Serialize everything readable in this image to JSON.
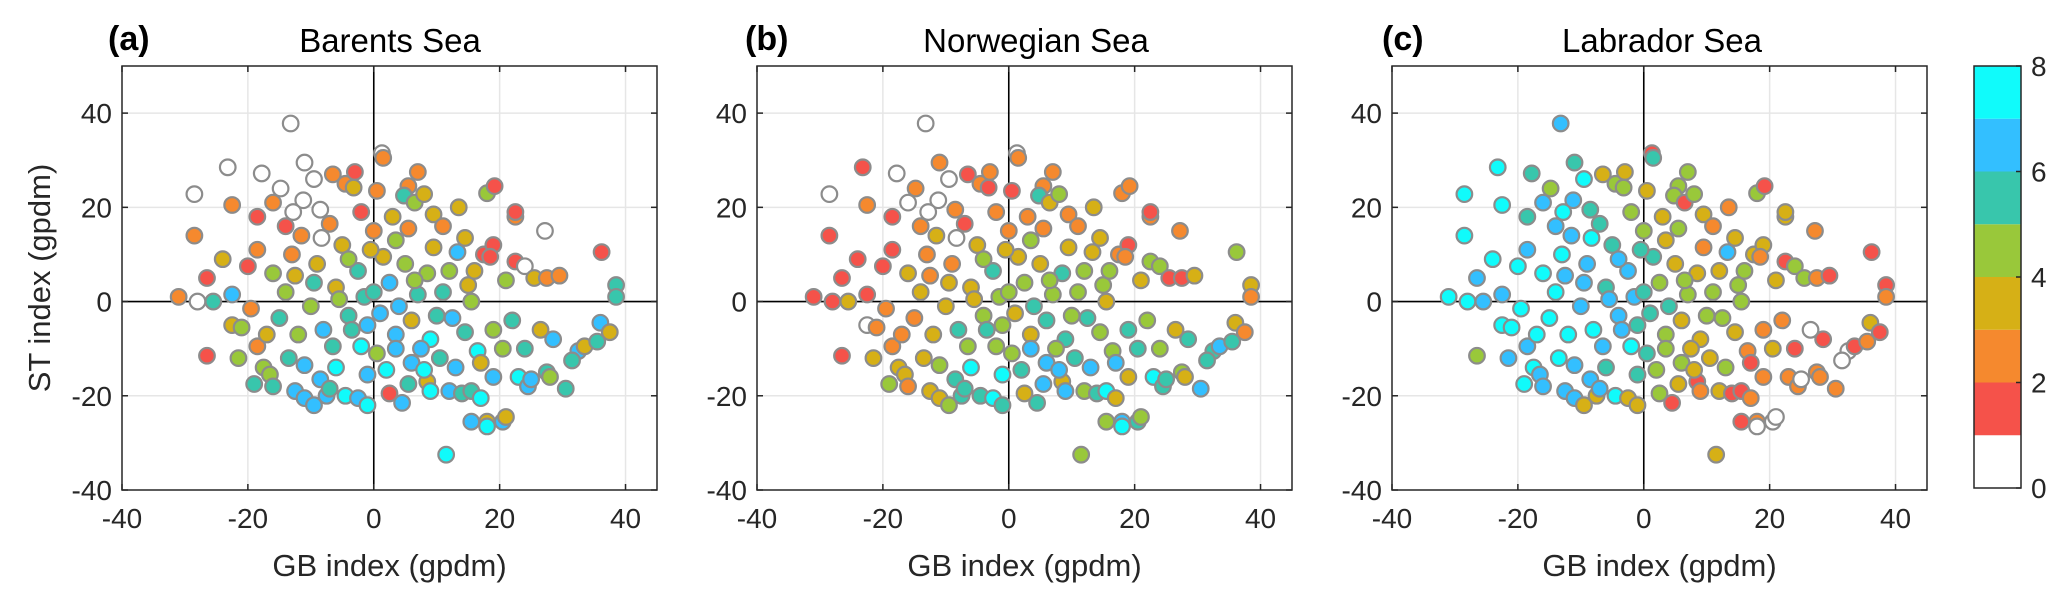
{
  "figure": {
    "colorbar": {
      "ticks": [
        "0",
        "2",
        "4",
        "6",
        "8"
      ],
      "range": [
        0,
        8
      ],
      "bins": [
        {
          "from": 0,
          "to": 1,
          "color": "#ffffff"
        },
        {
          "from": 1,
          "to": 2,
          "color": "#f5524a"
        },
        {
          "from": 2,
          "to": 3,
          "color": "#f5892e"
        },
        {
          "from": 3,
          "to": 4,
          "color": "#d6b016"
        },
        {
          "from": 4,
          "to": 5,
          "color": "#99c83a"
        },
        {
          "from": 5,
          "to": 6,
          "color": "#38c6ac"
        },
        {
          "from": 6,
          "to": 7,
          "color": "#33bfff"
        },
        {
          "from": 7,
          "to": 8,
          "color": "#10fbfb"
        }
      ]
    },
    "marker_edge_color": "#8c8c8c"
  },
  "chart_data": [
    {
      "type": "scatter",
      "panel_label": "(a)",
      "title": "Barents Sea",
      "xlabel": "GB index (gpdm)",
      "ylabel": "ST index (gpdm)",
      "xlim": [
        -40,
        45
      ],
      "ylim": [
        -40,
        50
      ],
      "xticks": [
        "-40",
        "-20",
        "0",
        "20",
        "40"
      ],
      "yticks": [
        "-40",
        "-20",
        "0",
        "20",
        "40"
      ],
      "grid": true,
      "color_value_index": 2
    },
    {
      "type": "scatter",
      "panel_label": "(b)",
      "title": "Norwegian Sea",
      "xlabel": "GB index (gpdm)",
      "ylabel": "",
      "xlim": [
        -40,
        45
      ],
      "ylim": [
        -40,
        50
      ],
      "xticks": [
        "-40",
        "-20",
        "0",
        "20",
        "40"
      ],
      "yticks": [
        "-40",
        "-20",
        "0",
        "20",
        "40"
      ],
      "grid": true,
      "color_value_index": 3
    },
    {
      "type": "scatter",
      "panel_label": "(c)",
      "title": "Labrador Sea",
      "xlabel": "GB index (gpdm)",
      "ylabel": "",
      "xlim": [
        -40,
        45
      ],
      "ylim": [
        -40,
        50
      ],
      "xticks": [
        "-40",
        "-20",
        "0",
        "20",
        "40"
      ],
      "yticks": [
        "-40",
        "-20",
        "0",
        "20",
        "40"
      ],
      "grid": true,
      "color_value_index": 4
    }
  ],
  "points_columns": [
    "GB",
    "ST",
    "barents",
    "norwegian",
    "labrador"
  ],
  "points": [
    [
      -13.2,
      37.8,
      0.5,
      0.5,
      6.5
    ],
    [
      1.3,
      31.5,
      0.5,
      0.5,
      1.5
    ],
    [
      1.5,
      30.5,
      2.5,
      2.5,
      5.5
    ],
    [
      -28.5,
      22.8,
      0.5,
      0.5,
      7.5
    ],
    [
      -23.2,
      28.5,
      0.5,
      1.5,
      7.5
    ],
    [
      -17.8,
      27.2,
      0.5,
      0.5,
      5.5
    ],
    [
      -11.0,
      29.5,
      0.5,
      2.5,
      5.5
    ],
    [
      -14.8,
      24.0,
      0.5,
      2.5,
      4.5
    ],
    [
      -9.5,
      26.0,
      0.5,
      0.5,
      7.5
    ],
    [
      -6.5,
      27.0,
      2.5,
      1.5,
      3.5
    ],
    [
      -4.5,
      25.0,
      2.5,
      2.5,
      4.5
    ],
    [
      -3.0,
      27.5,
      1.5,
      2.5,
      3.5
    ],
    [
      -3.2,
      24.2,
      3.5,
      1.5,
      4.5
    ],
    [
      -22.5,
      20.5,
      2.5,
      2.5,
      7.5
    ],
    [
      -28.5,
      14.0,
      2.5,
      1.5,
      7.5
    ],
    [
      -18.5,
      18.0,
      1.5,
      1.5,
      5.5
    ],
    [
      -11.2,
      21.5,
      0.5,
      0.5,
      6.5
    ],
    [
      -12.8,
      19.0,
      0.5,
      0.5,
      7.5
    ],
    [
      -8.5,
      19.5,
      0.5,
      2.5,
      5.5
    ],
    [
      -8.3,
      13.5,
      0.5,
      0.5,
      7.5
    ],
    [
      -14.0,
      16.0,
      1.5,
      2.5,
      6.5
    ],
    [
      5.5,
      24.5,
      2.5,
      2.5,
      4.5
    ],
    [
      7.0,
      27.5,
      2.5,
      2.5,
      4.5
    ],
    [
      4.8,
      22.5,
      5.5,
      5.5,
      4.5
    ],
    [
      6.5,
      21.0,
      4.5,
      3.5,
      1.5
    ],
    [
      8.0,
      22.8,
      3.5,
      4.5,
      4.5
    ],
    [
      9.5,
      18.5,
      3.5,
      2.5,
      3.5
    ],
    [
      13.5,
      20.0,
      3.5,
      3.5,
      2.5
    ],
    [
      18.0,
      23.0,
      4.5,
      2.5,
      4.5
    ],
    [
      19.2,
      24.5,
      1.5,
      2.5,
      1.5
    ],
    [
      13.3,
      10.5,
      6.5,
      3.5,
      6.5
    ],
    [
      22.5,
      18.0,
      2.5,
      2.5,
      3.5
    ],
    [
      22.5,
      19.0,
      1.5,
      1.5,
      3.5
    ],
    [
      27.2,
      15.0,
      0.5,
      2.5,
      2.5
    ],
    [
      36.2,
      10.5,
      1.5,
      4.5,
      1.5
    ],
    [
      38.5,
      3.5,
      5.5,
      3.5,
      1.5
    ],
    [
      38.5,
      1.0,
      5.5,
      2.5,
      2.5
    ],
    [
      17.5,
      10.0,
      1.5,
      2.5,
      3.5
    ],
    [
      19.0,
      12.0,
      1.5,
      1.5,
      3.5
    ],
    [
      18.5,
      9.5,
      1.5,
      2.5,
      2.5
    ],
    [
      22.5,
      8.5,
      1.5,
      4.5,
      1.5
    ],
    [
      24.0,
      7.5,
      0.5,
      4.5,
      4.5
    ],
    [
      25.5,
      5.0,
      3.5,
      1.5,
      4.5
    ],
    [
      27.5,
      5.0,
      2.5,
      1.5,
      2.5
    ],
    [
      29.5,
      5.5,
      2.5,
      3.5,
      1.5
    ],
    [
      21.0,
      4.5,
      4.5,
      3.5,
      3.5
    ],
    [
      15.0,
      3.5,
      3.5,
      4.5,
      4.5
    ],
    [
      -31.0,
      1.0,
      2.5,
      1.5,
      7.5
    ],
    [
      -28.0,
      0.0,
      0.5,
      1.5,
      7.5
    ],
    [
      -25.5,
      0.0,
      5.5,
      3.5,
      6.5
    ],
    [
      -26.5,
      5.0,
      1.5,
      1.5,
      6.5
    ],
    [
      -22.5,
      1.5,
      6.5,
      1.5,
      6.5
    ],
    [
      -26.5,
      -11.5,
      1.5,
      1.5,
      4.5
    ],
    [
      -22.5,
      -5.0,
      3.5,
      0.5,
      7.5
    ],
    [
      -21.0,
      -5.5,
      4.5,
      2.5,
      7.5
    ],
    [
      -18.5,
      -9.5,
      2.5,
      2.5,
      6.5
    ],
    [
      -17.5,
      -14.0,
      4.5,
      3.5,
      7.5
    ],
    [
      -16.5,
      -15.5,
      4.5,
      3.5,
      6.5
    ],
    [
      -16.0,
      -18.0,
      5.5,
      2.5,
      6.5
    ],
    [
      -12.5,
      -19.0,
      6.5,
      3.5,
      6.5
    ],
    [
      -11.0,
      -20.5,
      6.5,
      3.5,
      6.5
    ],
    [
      -7.5,
      -20.0,
      6.5,
      5.5,
      3.5
    ],
    [
      -4.5,
      -20.0,
      7.5,
      5.5,
      7.5
    ],
    [
      -2.5,
      -20.5,
      6.5,
      7.5,
      3.5
    ],
    [
      -1.0,
      -22.0,
      7.5,
      5.5,
      3.5
    ],
    [
      2.5,
      -19.5,
      1.5,
      3.5,
      4.5
    ],
    [
      4.5,
      -21.5,
      6.5,
      5.5,
      1.5
    ],
    [
      8.5,
      -17.0,
      3.5,
      3.5,
      1.5
    ],
    [
      9.0,
      -19.0,
      7.5,
      6.5,
      2.5
    ],
    [
      12.0,
      -19.0,
      6.5,
      4.5,
      3.5
    ],
    [
      14.0,
      -19.5,
      5.5,
      5.5,
      1.5
    ],
    [
      15.5,
      -19.0,
      5.5,
      7.5,
      1.5
    ],
    [
      17.0,
      -20.5,
      7.5,
      3.5,
      2.5
    ],
    [
      15.5,
      -25.5,
      6.5,
      4.5,
      1.5
    ],
    [
      18.0,
      -25.5,
      3.5,
      6.5,
      2.5
    ],
    [
      18.0,
      -26.5,
      7.5,
      7.5,
      0.5
    ],
    [
      20.5,
      -25.5,
      6.5,
      5.5,
      0.5
    ],
    [
      21.0,
      -24.5,
      3.5,
      4.5,
      0.5
    ],
    [
      11.5,
      -32.5,
      7.5,
      4.5,
      3.5
    ],
    [
      23.0,
      -16.0,
      7.5,
      7.5,
      2.5
    ],
    [
      24.5,
      -18.0,
      6.5,
      5.5,
      2.5
    ],
    [
      25.0,
      -16.5,
      6.5,
      5.5,
      0.5
    ],
    [
      27.5,
      -15.0,
      5.5,
      4.5,
      2.5
    ],
    [
      28.0,
      -16.0,
      4.5,
      3.5,
      2.5
    ],
    [
      30.5,
      -18.5,
      5.5,
      6.5,
      2.5
    ],
    [
      32.5,
      -10.5,
      6.5,
      5.5,
      0.5
    ],
    [
      33.5,
      -9.5,
      3.5,
      6.5,
      1.5
    ],
    [
      35.5,
      -8.5,
      5.5,
      5.5,
      2.5
    ],
    [
      36.0,
      -4.5,
      6.5,
      3.5,
      3.5
    ],
    [
      37.5,
      -6.5,
      3.5,
      2.5,
      1.5
    ],
    [
      31.5,
      -12.5,
      5.5,
      5.5,
      0.5
    ],
    [
      26.5,
      -6.0,
      3.5,
      3.5,
      0.5
    ],
    [
      22.0,
      -4.0,
      5.5,
      4.5,
      2.5
    ],
    [
      20.5,
      -10.0,
      4.5,
      5.5,
      3.5
    ],
    [
      16.5,
      -10.5,
      7.5,
      4.5,
      2.5
    ],
    [
      17.0,
      -13.0,
      3.5,
      6.5,
      1.5
    ],
    [
      13.0,
      -14.0,
      6.5,
      6.5,
      4.5
    ],
    [
      10.5,
      -12.0,
      5.5,
      5.5,
      3.5
    ],
    [
      -9.5,
      -22.0,
      6.5,
      4.5,
      3.5
    ],
    [
      -6.0,
      -14.0,
      7.5,
      7.5,
      5.5
    ],
    [
      -13.5,
      -12.0,
      5.5,
      3.5,
      7.5
    ],
    [
      -2.0,
      -9.5,
      7.5,
      4.5,
      7.5
    ],
    [
      0.5,
      -11.0,
      4.5,
      4.5,
      5.5
    ],
    [
      3.5,
      -7.0,
      6.5,
      3.5,
      4.5
    ],
    [
      6.0,
      -4.0,
      3.5,
      5.5,
      3.5
    ],
    [
      -8.0,
      -6.0,
      6.5,
      5.5,
      7.5
    ],
    [
      -4.0,
      -3.0,
      5.5,
      4.5,
      6.5
    ],
    [
      1.0,
      -2.5,
      6.5,
      3.5,
      5.5
    ],
    [
      -10.0,
      -1.0,
      4.5,
      3.5,
      6.5
    ],
    [
      -15.0,
      -3.5,
      5.5,
      2.5,
      7.5
    ],
    [
      -6.0,
      3.0,
      3.5,
      3.5,
      5.5
    ],
    [
      -2.5,
      6.5,
      5.5,
      5.5,
      6.5
    ],
    [
      2.5,
      4.0,
      6.5,
      4.5,
      4.5
    ],
    [
      5.0,
      8.0,
      4.5,
      3.5,
      3.5
    ],
    [
      -9.0,
      8.0,
      3.5,
      2.5,
      6.5
    ],
    [
      -13.0,
      10.0,
      2.5,
      2.5,
      7.5
    ],
    [
      -16.0,
      6.0,
      4.5,
      3.5,
      7.5
    ],
    [
      -18.5,
      11.0,
      2.5,
      1.5,
      6.5
    ],
    [
      -5.0,
      12.0,
      3.5,
      3.5,
      5.5
    ],
    [
      0.0,
      15.0,
      2.5,
      2.5,
      4.5
    ],
    [
      3.5,
      13.0,
      4.5,
      4.5,
      3.5
    ],
    [
      8.5,
      6.0,
      4.5,
      5.5,
      3.5
    ],
    [
      11.0,
      2.0,
      5.5,
      4.5,
      4.5
    ],
    [
      12.5,
      -3.5,
      6.5,
      5.5,
      4.5
    ],
    [
      9.0,
      -8.0,
      7.5,
      5.5,
      3.5
    ],
    [
      6.0,
      -13.0,
      6.5,
      6.5,
      4.5
    ],
    [
      -1.0,
      -15.5,
      6.5,
      7.5,
      5.5
    ],
    [
      -8.5,
      -16.5,
      6.5,
      5.5,
      6.5
    ],
    [
      -12.0,
      -7.0,
      4.5,
      3.5,
      7.5
    ],
    [
      -19.5,
      -1.5,
      2.5,
      2.5,
      7.5
    ],
    [
      -7.0,
      16.5,
      2.5,
      1.5,
      5.5
    ],
    [
      -2.0,
      19.0,
      1.5,
      2.5,
      4.5
    ],
    [
      3.0,
      18.0,
      3.5,
      2.5,
      3.5
    ],
    [
      -11.5,
      14.0,
      2.5,
      3.5,
      6.5
    ],
    [
      -4.0,
      9.0,
      4.5,
      4.5,
      6.5
    ],
    [
      1.5,
      9.5,
      3.5,
      3.5,
      5.5
    ],
    [
      7.0,
      1.5,
      5.5,
      4.5,
      4.5
    ],
    [
      -1.5,
      1.0,
      5.5,
      4.5,
      6.5
    ],
    [
      4.0,
      -1.0,
      6.5,
      5.5,
      5.5
    ],
    [
      -6.5,
      -9.5,
      5.5,
      4.5,
      6.5
    ],
    [
      2.0,
      -14.5,
      7.5,
      5.5,
      4.5
    ],
    [
      7.5,
      -10.0,
      6.5,
      4.5,
      3.5
    ],
    [
      14.5,
      -6.5,
      5.5,
      4.5,
      3.5
    ],
    [
      15.5,
      0.0,
      4.5,
      3.5,
      4.5
    ],
    [
      12.0,
      6.5,
      4.5,
      4.5,
      3.5
    ],
    [
      9.5,
      11.5,
      3.5,
      3.5,
      2.5
    ],
    [
      -14.0,
      2.0,
      4.5,
      3.5,
      7.5
    ],
    [
      -9.5,
      4.0,
      5.5,
      3.5,
      6.5
    ],
    [
      -11.0,
      -13.5,
      6.5,
      4.5,
      6.5
    ],
    [
      -3.5,
      -6.0,
      5.5,
      5.5,
      6.5
    ],
    [
      5.5,
      -17.5,
      5.5,
      6.5,
      3.5
    ],
    [
      10.0,
      -3.0,
      5.5,
      4.5,
      4.5
    ],
    [
      -17.0,
      -7.0,
      3.5,
      2.5,
      7.5
    ],
    [
      -20.0,
      7.5,
      1.5,
      1.5,
      7.5
    ],
    [
      -21.5,
      -12.0,
      4.5,
      3.5,
      6.5
    ],
    [
      0.5,
      23.5,
      2.5,
      1.5,
      3.5
    ],
    [
      -0.5,
      11.0,
      3.5,
      3.5,
      5.5
    ],
    [
      5.5,
      15.5,
      2.5,
      2.5,
      4.5
    ],
    [
      14.5,
      13.5,
      3.5,
      3.5,
      3.5
    ],
    [
      11.0,
      16.0,
      2.5,
      2.5,
      2.5
    ],
    [
      -24.0,
      9.0,
      3.5,
      1.5,
      7.5
    ],
    [
      -16.0,
      21.0,
      2.5,
      0.5,
      6.5
    ],
    [
      -19.0,
      -17.5,
      5.5,
      4.5,
      7.5
    ],
    [
      -7.0,
      -18.5,
      5.5,
      5.5,
      6.5
    ],
    [
      3.5,
      -10.0,
      6.5,
      6.5,
      4.5
    ],
    [
      8.0,
      -14.5,
      7.5,
      6.5,
      3.5
    ],
    [
      19.0,
      -6.0,
      4.5,
      5.5,
      2.5
    ],
    [
      19.0,
      -16.0,
      6.5,
      3.5,
      2.5
    ],
    [
      24.0,
      -10.0,
      5.5,
      4.5,
      1.5
    ],
    [
      28.5,
      -8.0,
      6.5,
      5.5,
      1.5
    ],
    [
      16.0,
      6.5,
      3.5,
      4.5,
      4.5
    ],
    [
      -1.0,
      -5.0,
      6.5,
      4.5,
      5.5
    ],
    [
      -5.5,
      0.5,
      4.5,
      3.5,
      6.5
    ],
    [
      0.0,
      2.0,
      5.5,
      4.5,
      5.5
    ],
    [
      6.5,
      4.5,
      4.5,
      4.5,
      4.5
    ],
    [
      -12.5,
      5.5,
      3.5,
      2.5,
      6.5
    ]
  ]
}
